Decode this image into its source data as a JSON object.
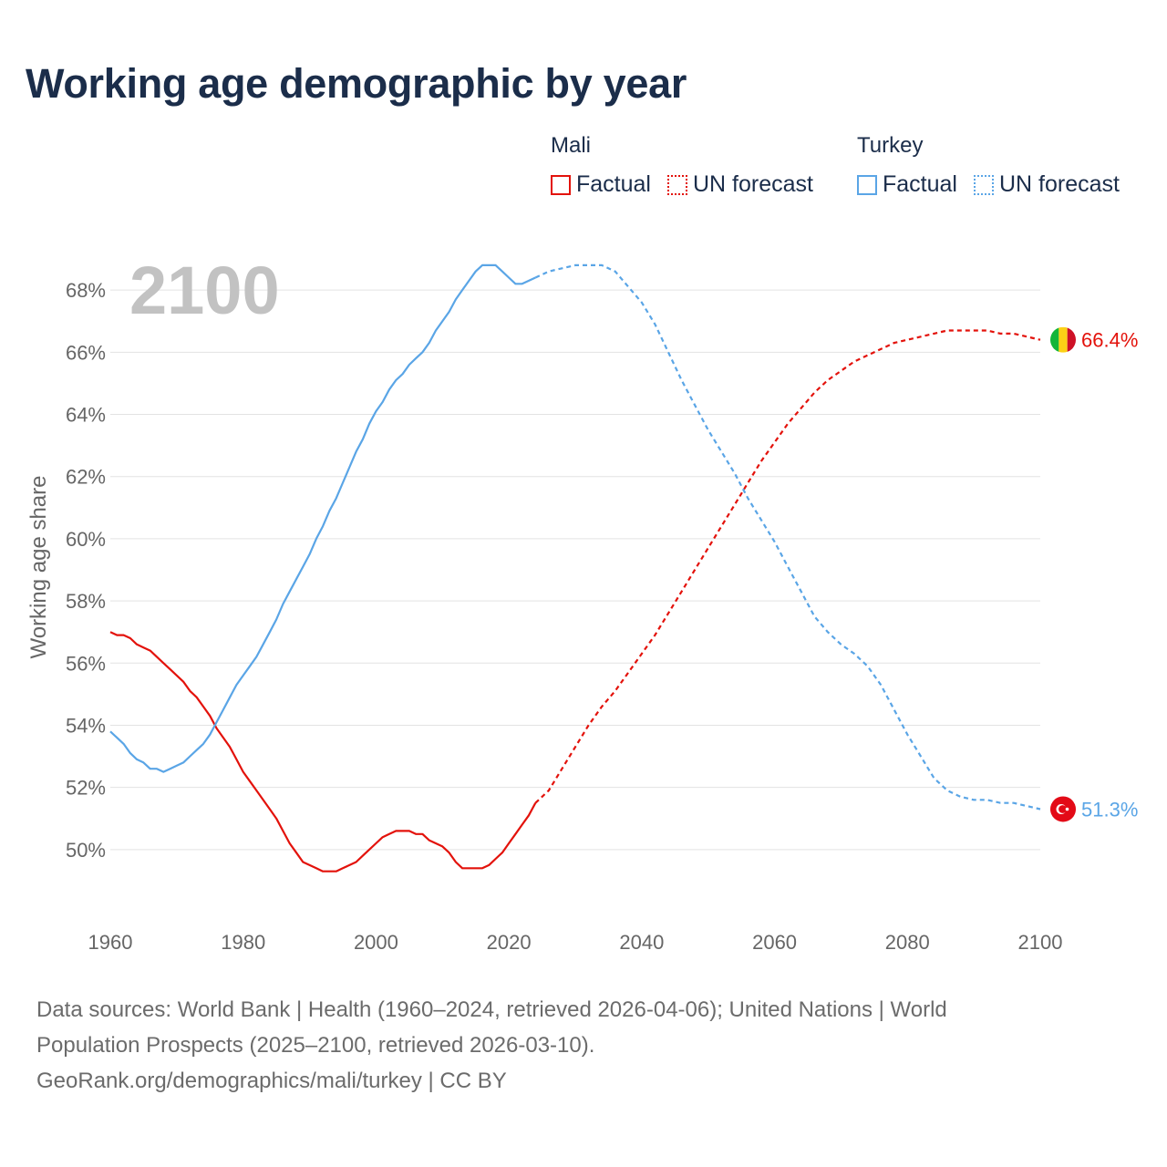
{
  "title": "Working age demographic by year",
  "legend": {
    "groups": [
      {
        "name": "Mali",
        "color": "#e3120b",
        "factual": "Factual",
        "forecast": "UN forecast"
      },
      {
        "name": "Turkey",
        "color": "#5aa5e6",
        "factual": "Factual",
        "forecast": "UN forecast"
      }
    ]
  },
  "year_overlay": "2100",
  "chart_data": {
    "type": "line",
    "title": "Working age demographic by year",
    "xlabel": "",
    "ylabel": "Working age share",
    "xlim": [
      1960,
      2100
    ],
    "ylim": [
      48,
      69.5
    ],
    "x_ticks": [
      1960,
      1980,
      2000,
      2020,
      2040,
      2060,
      2080,
      2100
    ],
    "y_ticks": [
      50,
      52,
      54,
      56,
      58,
      60,
      62,
      64,
      66,
      68
    ],
    "y_tick_suffix": "%",
    "factual_end_year": 2024,
    "series": [
      {
        "name": "Mali",
        "color": "#e3120b",
        "end_label": "66.4%",
        "flag": "mali",
        "points": [
          [
            1960,
            57.0
          ],
          [
            1961,
            56.9
          ],
          [
            1962,
            56.9
          ],
          [
            1963,
            56.8
          ],
          [
            1964,
            56.6
          ],
          [
            1965,
            56.5
          ],
          [
            1966,
            56.4
          ],
          [
            1967,
            56.2
          ],
          [
            1968,
            56.0
          ],
          [
            1969,
            55.8
          ],
          [
            1970,
            55.6
          ],
          [
            1971,
            55.4
          ],
          [
            1972,
            55.1
          ],
          [
            1973,
            54.9
          ],
          [
            1974,
            54.6
          ],
          [
            1975,
            54.3
          ],
          [
            1976,
            53.9
          ],
          [
            1977,
            53.6
          ],
          [
            1978,
            53.3
          ],
          [
            1979,
            52.9
          ],
          [
            1980,
            52.5
          ],
          [
            1981,
            52.2
          ],
          [
            1982,
            51.9
          ],
          [
            1983,
            51.6
          ],
          [
            1984,
            51.3
          ],
          [
            1985,
            51.0
          ],
          [
            1986,
            50.6
          ],
          [
            1987,
            50.2
          ],
          [
            1988,
            49.9
          ],
          [
            1989,
            49.6
          ],
          [
            1990,
            49.5
          ],
          [
            1991,
            49.4
          ],
          [
            1992,
            49.3
          ],
          [
            1993,
            49.3
          ],
          [
            1994,
            49.3
          ],
          [
            1995,
            49.4
          ],
          [
            1996,
            49.5
          ],
          [
            1997,
            49.6
          ],
          [
            1998,
            49.8
          ],
          [
            1999,
            50.0
          ],
          [
            2000,
            50.2
          ],
          [
            2001,
            50.4
          ],
          [
            2002,
            50.5
          ],
          [
            2003,
            50.6
          ],
          [
            2004,
            50.6
          ],
          [
            2005,
            50.6
          ],
          [
            2006,
            50.5
          ],
          [
            2007,
            50.5
          ],
          [
            2008,
            50.3
          ],
          [
            2009,
            50.2
          ],
          [
            2010,
            50.1
          ],
          [
            2011,
            49.9
          ],
          [
            2012,
            49.6
          ],
          [
            2013,
            49.4
          ],
          [
            2014,
            49.4
          ],
          [
            2015,
            49.4
          ],
          [
            2016,
            49.4
          ],
          [
            2017,
            49.5
          ],
          [
            2018,
            49.7
          ],
          [
            2019,
            49.9
          ],
          [
            2020,
            50.2
          ],
          [
            2021,
            50.5
          ],
          [
            2022,
            50.8
          ],
          [
            2023,
            51.1
          ],
          [
            2024,
            51.5
          ],
          [
            2026,
            51.9
          ],
          [
            2028,
            52.6
          ],
          [
            2030,
            53.3
          ],
          [
            2032,
            54.0
          ],
          [
            2034,
            54.6
          ],
          [
            2036,
            55.1
          ],
          [
            2038,
            55.7
          ],
          [
            2040,
            56.3
          ],
          [
            2042,
            56.9
          ],
          [
            2044,
            57.6
          ],
          [
            2046,
            58.3
          ],
          [
            2048,
            59.0
          ],
          [
            2050,
            59.7
          ],
          [
            2052,
            60.4
          ],
          [
            2054,
            61.1
          ],
          [
            2056,
            61.8
          ],
          [
            2058,
            62.5
          ],
          [
            2060,
            63.1
          ],
          [
            2062,
            63.7
          ],
          [
            2064,
            64.2
          ],
          [
            2066,
            64.7
          ],
          [
            2068,
            65.1
          ],
          [
            2070,
            65.4
          ],
          [
            2072,
            65.7
          ],
          [
            2074,
            65.9
          ],
          [
            2076,
            66.1
          ],
          [
            2078,
            66.3
          ],
          [
            2080,
            66.4
          ],
          [
            2082,
            66.5
          ],
          [
            2084,
            66.6
          ],
          [
            2086,
            66.7
          ],
          [
            2088,
            66.7
          ],
          [
            2090,
            66.7
          ],
          [
            2092,
            66.7
          ],
          [
            2094,
            66.6
          ],
          [
            2096,
            66.6
          ],
          [
            2098,
            66.5
          ],
          [
            2100,
            66.4
          ]
        ]
      },
      {
        "name": "Turkey",
        "color": "#5aa5e6",
        "end_label": "51.3%",
        "flag": "turkey",
        "points": [
          [
            1960,
            53.8
          ],
          [
            1961,
            53.6
          ],
          [
            1962,
            53.4
          ],
          [
            1963,
            53.1
          ],
          [
            1964,
            52.9
          ],
          [
            1965,
            52.8
          ],
          [
            1966,
            52.6
          ],
          [
            1967,
            52.6
          ],
          [
            1968,
            52.5
          ],
          [
            1969,
            52.6
          ],
          [
            1970,
            52.7
          ],
          [
            1971,
            52.8
          ],
          [
            1972,
            53.0
          ],
          [
            1973,
            53.2
          ],
          [
            1974,
            53.4
          ],
          [
            1975,
            53.7
          ],
          [
            1976,
            54.1
          ],
          [
            1977,
            54.5
          ],
          [
            1978,
            54.9
          ],
          [
            1979,
            55.3
          ],
          [
            1980,
            55.6
          ],
          [
            1981,
            55.9
          ],
          [
            1982,
            56.2
          ],
          [
            1983,
            56.6
          ],
          [
            1984,
            57.0
          ],
          [
            1985,
            57.4
          ],
          [
            1986,
            57.9
          ],
          [
            1987,
            58.3
          ],
          [
            1988,
            58.7
          ],
          [
            1989,
            59.1
          ],
          [
            1990,
            59.5
          ],
          [
            1991,
            60.0
          ],
          [
            1992,
            60.4
          ],
          [
            1993,
            60.9
          ],
          [
            1994,
            61.3
          ],
          [
            1995,
            61.8
          ],
          [
            1996,
            62.3
          ],
          [
            1997,
            62.8
          ],
          [
            1998,
            63.2
          ],
          [
            1999,
            63.7
          ],
          [
            2000,
            64.1
          ],
          [
            2001,
            64.4
          ],
          [
            2002,
            64.8
          ],
          [
            2003,
            65.1
          ],
          [
            2004,
            65.3
          ],
          [
            2005,
            65.6
          ],
          [
            2006,
            65.8
          ],
          [
            2007,
            66.0
          ],
          [
            2008,
            66.3
          ],
          [
            2009,
            66.7
          ],
          [
            2010,
            67.0
          ],
          [
            2011,
            67.3
          ],
          [
            2012,
            67.7
          ],
          [
            2013,
            68.0
          ],
          [
            2014,
            68.3
          ],
          [
            2015,
            68.6
          ],
          [
            2016,
            68.8
          ],
          [
            2017,
            68.8
          ],
          [
            2018,
            68.8
          ],
          [
            2019,
            68.6
          ],
          [
            2020,
            68.4
          ],
          [
            2021,
            68.2
          ],
          [
            2022,
            68.2
          ],
          [
            2023,
            68.3
          ],
          [
            2024,
            68.4
          ],
          [
            2026,
            68.6
          ],
          [
            2028,
            68.7
          ],
          [
            2030,
            68.8
          ],
          [
            2032,
            68.8
          ],
          [
            2034,
            68.8
          ],
          [
            2036,
            68.6
          ],
          [
            2038,
            68.1
          ],
          [
            2040,
            67.6
          ],
          [
            2042,
            66.9
          ],
          [
            2044,
            66.0
          ],
          [
            2046,
            65.1
          ],
          [
            2048,
            64.3
          ],
          [
            2050,
            63.5
          ],
          [
            2052,
            62.8
          ],
          [
            2054,
            62.1
          ],
          [
            2056,
            61.3
          ],
          [
            2058,
            60.6
          ],
          [
            2060,
            59.9
          ],
          [
            2062,
            59.1
          ],
          [
            2064,
            58.3
          ],
          [
            2066,
            57.5
          ],
          [
            2068,
            57.0
          ],
          [
            2070,
            56.6
          ],
          [
            2072,
            56.3
          ],
          [
            2074,
            55.9
          ],
          [
            2076,
            55.3
          ],
          [
            2078,
            54.5
          ],
          [
            2080,
            53.7
          ],
          [
            2082,
            53.0
          ],
          [
            2084,
            52.3
          ],
          [
            2086,
            51.9
          ],
          [
            2088,
            51.7
          ],
          [
            2090,
            51.6
          ],
          [
            2092,
            51.6
          ],
          [
            2094,
            51.5
          ],
          [
            2096,
            51.5
          ],
          [
            2098,
            51.4
          ],
          [
            2100,
            51.3
          ]
        ]
      }
    ]
  },
  "footer": {
    "line1": "Data sources: World Bank | Health (1960–2024, retrieved 2026-04-06); United Nations | World",
    "line2": "Population Prospects (2025–2100, retrieved 2026-03-10).",
    "line3": "GeoRank.org/demographics/mali/turkey | CC BY"
  }
}
